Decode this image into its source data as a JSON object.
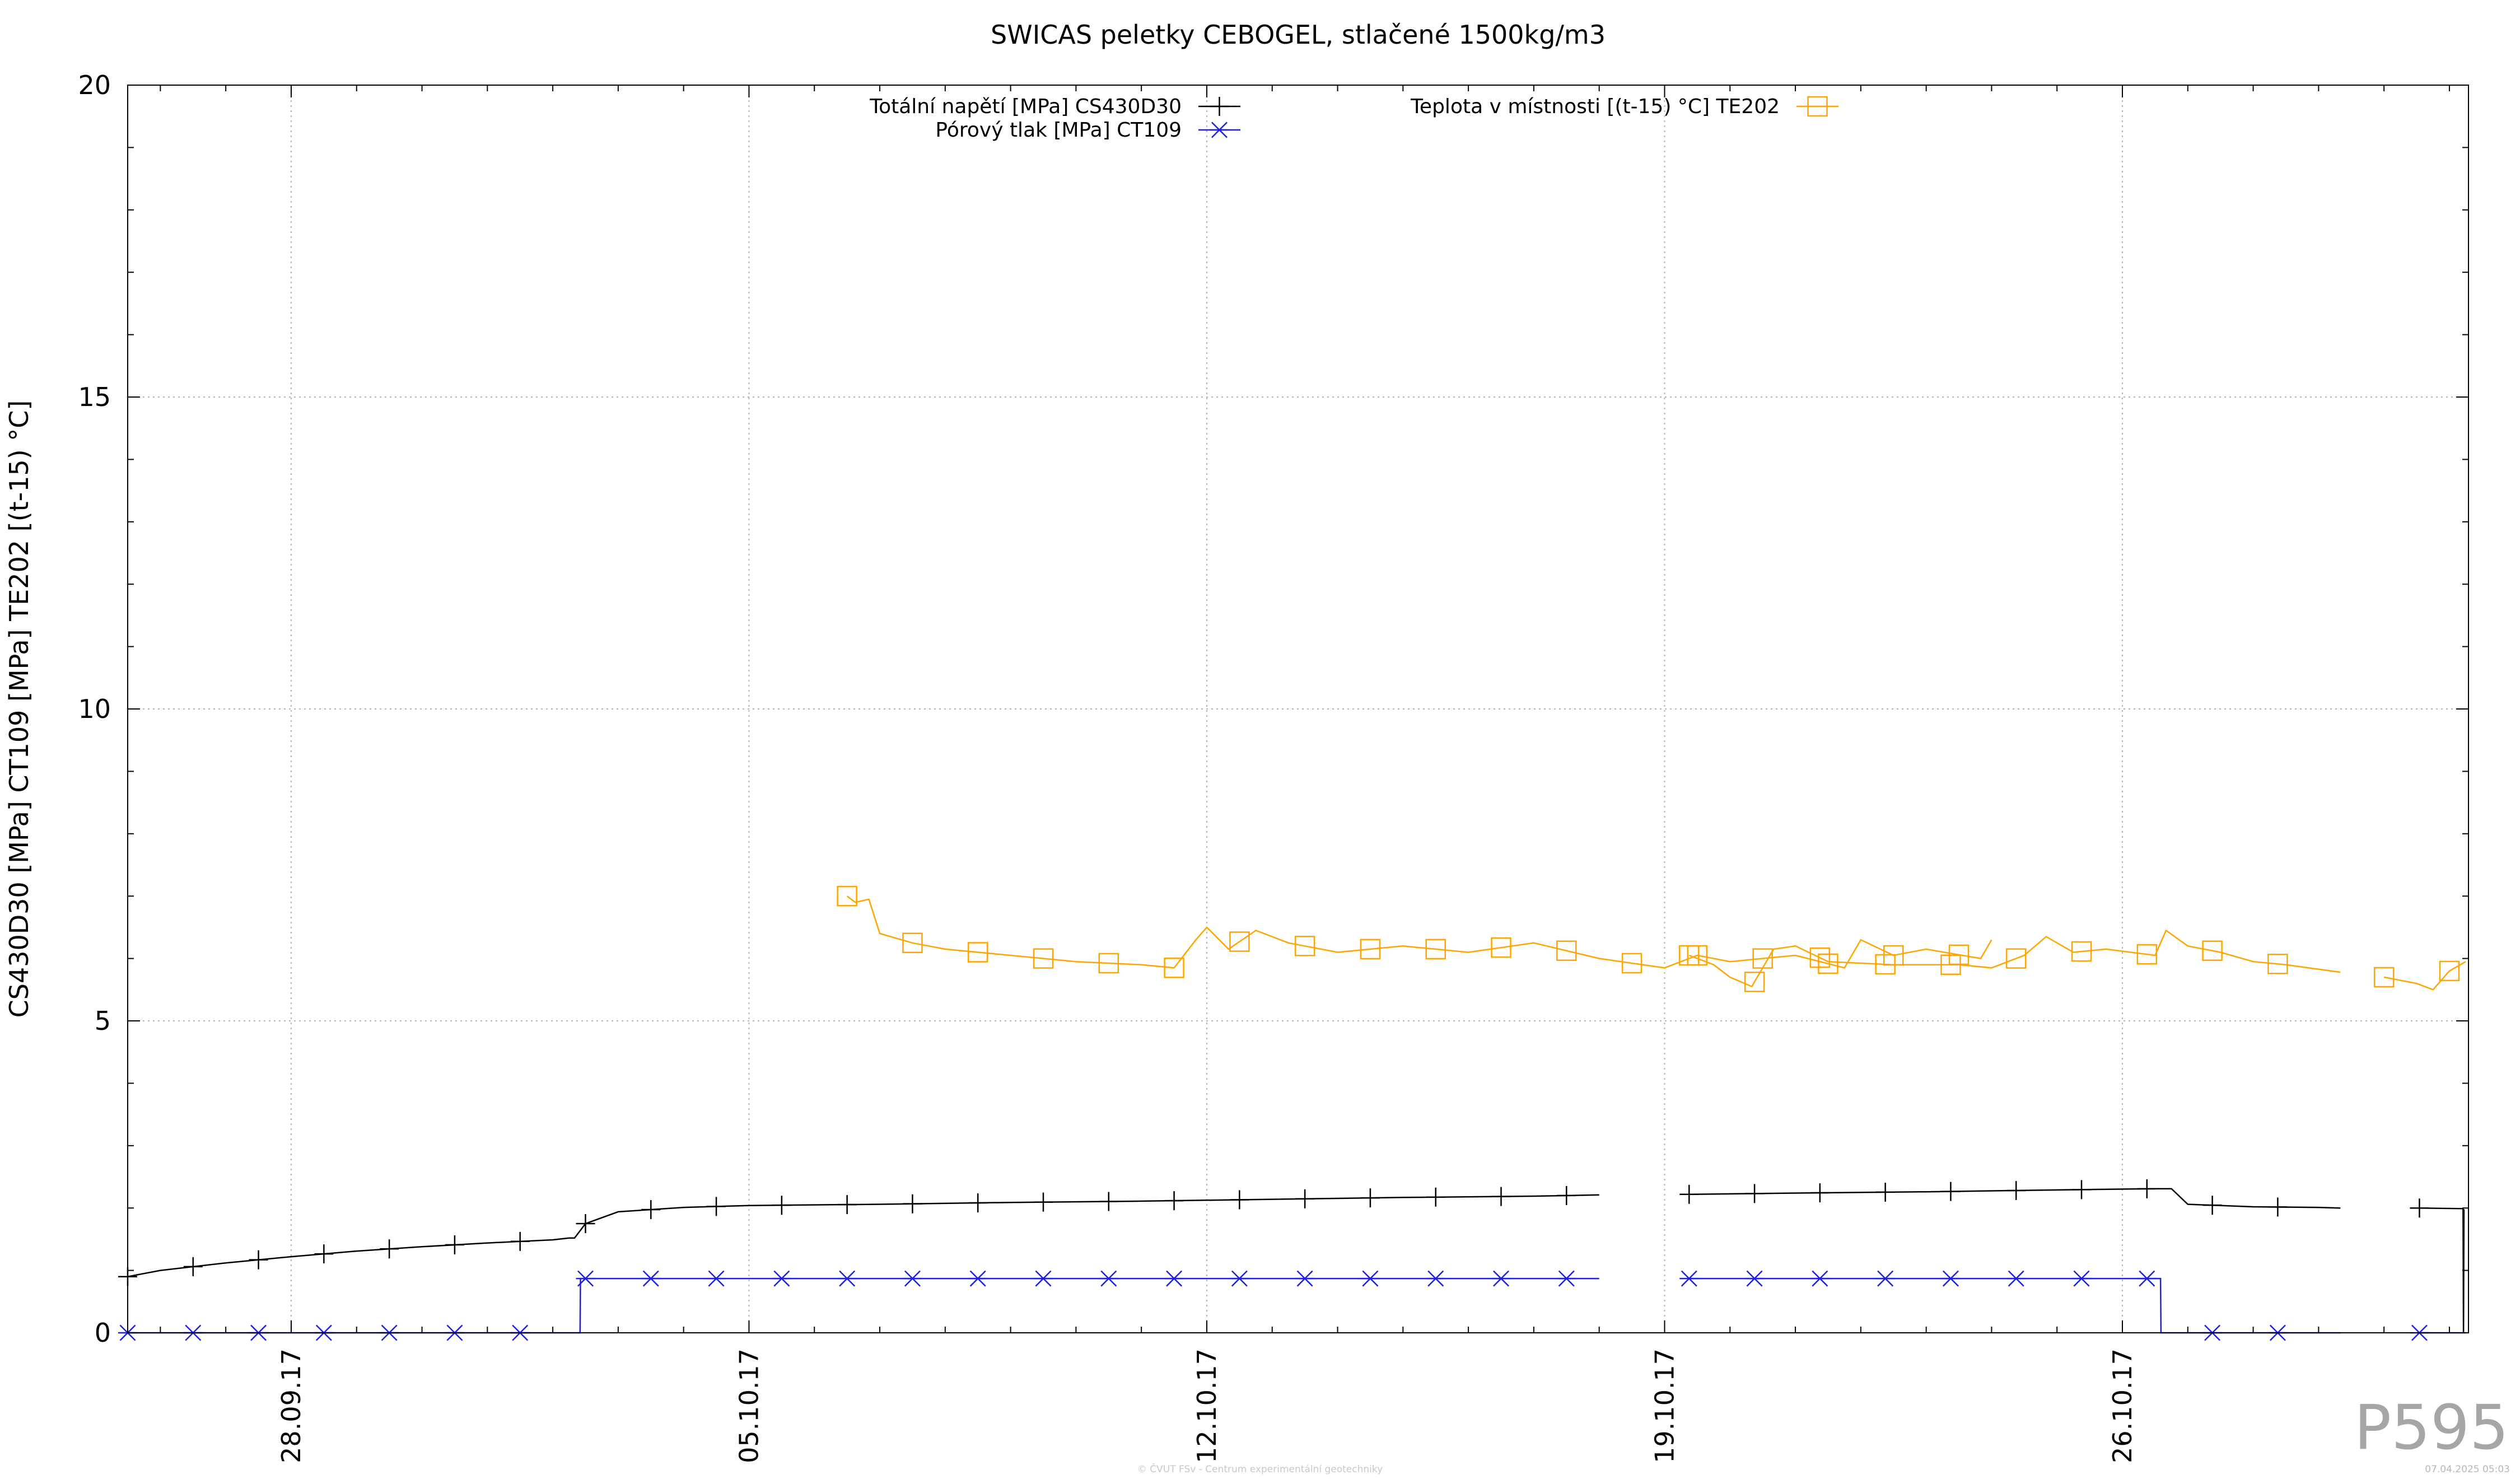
{
  "chart_data": {
    "type": "line",
    "title": "SWICAS peletky CEBOGEL, stlačené 1500kg/m3",
    "ylabel": "CS430D30 [MPa] CT109 [MPa] TE202 [(t-15) °C]",
    "xlabel": "",
    "x_type": "date",
    "xlim": [
      "2017-09-25 12:00",
      "2017-10-31 07:00"
    ],
    "ylim": [
      0,
      20
    ],
    "yticks": [
      0,
      5,
      10,
      15,
      20
    ],
    "ytick_labels": [
      "0",
      "5",
      "10",
      "15",
      "20"
    ],
    "xticks": [
      "2017-09-28",
      "2017-10-05",
      "2017-10-12",
      "2017-10-19",
      "2017-10-26"
    ],
    "xtick_labels": [
      "28.09.17",
      "05.10.17",
      "12.10.17",
      "19.10.17",
      "26.10.17"
    ],
    "grid": true,
    "legend_position": "top",
    "series": [
      {
        "name": "Totální napětí [MPa] CS430D30",
        "color": "#000000",
        "marker": "plus",
        "segments": [
          [
            [
              "2017-09-25 12:00",
              0.9
            ],
            [
              "2017-09-26 00:00",
              1.0
            ],
            [
              "2017-09-27 00:00",
              1.12
            ],
            [
              "2017-09-28 00:00",
              1.22
            ],
            [
              "2017-09-29 00:00",
              1.31
            ],
            [
              "2017-09-30 00:00",
              1.38
            ],
            [
              "2017-10-01 00:00",
              1.44
            ],
            [
              "2017-10-02 00:00",
              1.49
            ],
            [
              "2017-10-02 06:00",
              1.52
            ],
            [
              "2017-10-02 08:00",
              1.52
            ],
            [
              "2017-10-02 12:00",
              1.75
            ],
            [
              "2017-10-03 00:00",
              1.94
            ],
            [
              "2017-10-04 00:00",
              2.01
            ],
            [
              "2017-10-05 00:00",
              2.04
            ],
            [
              "2017-10-07 00:00",
              2.06
            ],
            [
              "2017-10-09 00:00",
              2.09
            ],
            [
              "2017-10-11 00:00",
              2.11
            ],
            [
              "2017-10-13 00:00",
              2.14
            ],
            [
              "2017-10-15 00:00",
              2.17
            ],
            [
              "2017-10-17 00:00",
              2.19
            ],
            [
              "2017-10-18 00:00",
              2.21
            ]
          ],
          [
            [
              "2017-10-19 09:00",
              2.22
            ],
            [
              "2017-10-21 00:00",
              2.24
            ],
            [
              "2017-10-23 00:00",
              2.26
            ],
            [
              "2017-10-25 00:00",
              2.29
            ],
            [
              "2017-10-26 12:00",
              2.31
            ],
            [
              "2017-10-26 18:00",
              2.31
            ],
            [
              "2017-10-27 00:00",
              2.06
            ],
            [
              "2017-10-28 00:00",
              2.02
            ],
            [
              "2017-10-29 00:00",
              2.01
            ],
            [
              "2017-10-29 08:00",
              2.0
            ]
          ],
          [
            [
              "2017-10-30 13:00",
              2.0
            ],
            [
              "2017-10-31 05:00",
              1.99
            ],
            [
              "2017-10-31 05:10",
              0.0
            ],
            [
              "2017-10-31 05:20",
              1.98
            ]
          ]
        ]
      },
      {
        "name": "Pórový tlak [MPa] CT109",
        "color": "#1f1fe0",
        "marker": "star",
        "segments": [
          [
            [
              "2017-09-25 12:00",
              0.0
            ],
            [
              "2017-10-02 10:00",
              0.0
            ],
            [
              "2017-10-02 10:10",
              0.87
            ],
            [
              "2017-10-18 00:00",
              0.87
            ]
          ],
          [
            [
              "2017-10-19 09:00",
              0.87
            ],
            [
              "2017-10-26 14:00",
              0.87
            ],
            [
              "2017-10-26 14:10",
              0.0
            ],
            [
              "2017-10-29 08:00",
              0.0
            ]
          ],
          [
            [
              "2017-10-30 13:00",
              0.0
            ],
            [
              "2017-10-31 06:00",
              0.0
            ]
          ]
        ]
      },
      {
        "name": "Teplota v místnosti [(t-15) °C] TE202",
        "color": "#ffa500",
        "marker": "square",
        "segments": [
          [
            [
              "2017-10-06 12:00",
              7.0
            ],
            [
              "2017-10-06 15:00",
              6.9
            ],
            [
              "2017-10-06 20:00",
              6.95
            ],
            [
              "2017-10-07 00:00",
              6.4
            ],
            [
              "2017-10-07 12:00",
              6.25
            ],
            [
              "2017-10-08 00:00",
              6.15
            ],
            [
              "2017-10-09 00:00",
              6.05
            ],
            [
              "2017-10-10 00:00",
              5.95
            ],
            [
              "2017-10-11 00:00",
              5.9
            ],
            [
              "2017-10-11 12:00",
              5.85
            ],
            [
              "2017-10-11 20:00",
              6.3
            ],
            [
              "2017-10-12 00:00",
              6.5
            ],
            [
              "2017-10-12 08:00",
              6.15
            ],
            [
              "2017-10-12 18:00",
              6.45
            ],
            [
              "2017-10-13 06:00",
              6.25
            ],
            [
              "2017-10-14 00:00",
              6.1
            ],
            [
              "2017-10-15 00:00",
              6.2
            ],
            [
              "2017-10-16 00:00",
              6.1
            ],
            [
              "2017-10-17 00:00",
              6.25
            ],
            [
              "2017-10-18 00:00",
              6.0
            ],
            [
              "2017-10-19 00:00",
              5.85
            ],
            [
              "2017-10-19 12:00",
              6.05
            ],
            [
              "2017-10-20 00:00",
              5.95
            ],
            [
              "2017-10-21 00:00",
              6.05
            ],
            [
              "2017-10-21 18:00",
              5.85
            ],
            [
              "2017-10-22 00:00",
              6.3
            ],
            [
              "2017-10-22 12:00",
              6.05
            ],
            [
              "2017-10-23 00:00",
              6.15
            ],
            [
              "2017-10-23 20:00",
              6.0
            ],
            [
              "2017-10-24 00:00",
              6.3
            ]
          ],
          [
            [
              "2017-10-19 09:00",
              6.05
            ],
            [
              "2017-10-19 18:00",
              5.9
            ],
            [
              "2017-10-20 00:00",
              5.7
            ],
            [
              "2017-10-20 08:00",
              5.55
            ],
            [
              "2017-10-20 16:00",
              6.15
            ],
            [
              "2017-10-21 00:00",
              6.2
            ],
            [
              "2017-10-21 12:00",
              5.95
            ],
            [
              "2017-10-22 12:00",
              5.9
            ],
            [
              "2017-10-23 12:00",
              5.9
            ],
            [
              "2017-10-24 00:00",
              5.85
            ],
            [
              "2017-10-24 12:00",
              6.05
            ],
            [
              "2017-10-24 20:00",
              6.35
            ],
            [
              "2017-10-25 06:00",
              6.1
            ],
            [
              "2017-10-25 18:00",
              6.15
            ],
            [
              "2017-10-26 12:00",
              6.05
            ],
            [
              "2017-10-26 16:00",
              6.45
            ],
            [
              "2017-10-27 00:00",
              6.2
            ],
            [
              "2017-10-27 12:00",
              6.1
            ],
            [
              "2017-10-28 00:00",
              5.95
            ],
            [
              "2017-10-28 12:00",
              5.9
            ],
            [
              "2017-10-29 08:00",
              5.78
            ]
          ],
          [
            [
              "2017-10-30 00:00",
              5.7
            ],
            [
              "2017-10-30 12:00",
              5.6
            ],
            [
              "2017-10-30 18:00",
              5.5
            ],
            [
              "2017-10-31 00:00",
              5.8
            ],
            [
              "2017-10-31 06:00",
              5.95
            ]
          ]
        ]
      }
    ]
  },
  "watermark": "P595",
  "footer": {
    "credit": "© ČVUT FSv - Centrum experimentální geotechniky",
    "timestamp": "07.04.2025 05:03"
  }
}
